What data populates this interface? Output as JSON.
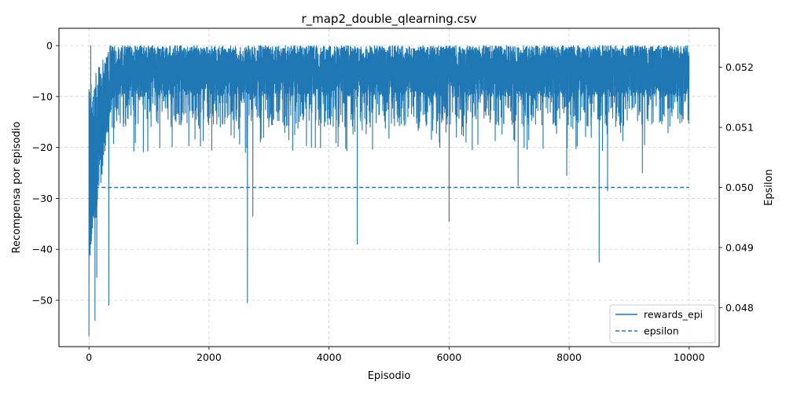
{
  "chart_data": {
    "type": "line",
    "title": "r_map2_double_qlearning.csv",
    "xlabel": "Episodio",
    "ylabel": "Recompensa por episodio",
    "y2label": "Epsilon",
    "xlim": [
      -500,
      10500
    ],
    "ylim": [
      -59.1,
      3.4
    ],
    "y2lim": [
      0.04735,
      0.05265
    ],
    "x_ticks": [
      0,
      2000,
      4000,
      6000,
      8000,
      10000
    ],
    "y_ticks": [
      0,
      -10,
      -20,
      -30,
      -40,
      -50
    ],
    "y2_ticks": [
      0.048,
      0.049,
      0.05,
      0.051,
      0.052
    ],
    "grid": true,
    "legend_position": "lower-right",
    "series": [
      {
        "name": "rewards_epi",
        "axis": "left",
        "style": "solid",
        "color": "#1f77b4",
        "episodes": 10000,
        "summary": {
          "max": 0.5,
          "min": -57
        },
        "notable_points": [
          {
            "x": 0,
            "y": -57
          },
          {
            "x": 30,
            "y": 0
          },
          {
            "x": 100,
            "y": -54
          },
          {
            "x": 130,
            "y": -45.5
          },
          {
            "x": 330,
            "y": -51
          },
          {
            "x": 2640,
            "y": -50.5
          },
          {
            "x": 2730,
            "y": -33.5
          },
          {
            "x": 4470,
            "y": -39
          },
          {
            "x": 6000,
            "y": -34.5
          },
          {
            "x": 8500,
            "y": -42.5
          },
          {
            "x": 8640,
            "y": -28.5
          },
          {
            "x": 7150,
            "y": -27.5
          },
          {
            "x": 7960,
            "y": -25.5
          },
          {
            "x": 9220,
            "y": -25
          }
        ]
      },
      {
        "name": "epsilon",
        "axis": "right",
        "style": "dashed",
        "color": "#1f77b4",
        "x": [
          0,
          10000
        ],
        "values": [
          0.05,
          0.05
        ]
      }
    ]
  }
}
